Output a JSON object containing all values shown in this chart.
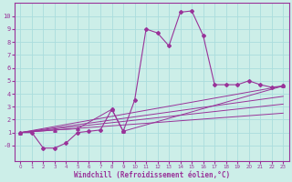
{
  "xlabel": "Windchill (Refroidissement éolien,°C)",
  "xlim": [
    -0.5,
    23.5
  ],
  "ylim": [
    -1.2,
    11.0
  ],
  "xticks": [
    0,
    1,
    2,
    3,
    4,
    5,
    6,
    7,
    8,
    9,
    10,
    11,
    12,
    13,
    14,
    15,
    16,
    17,
    18,
    19,
    20,
    21,
    22,
    23
  ],
  "yticks": [
    0,
    1,
    2,
    3,
    4,
    5,
    6,
    7,
    8,
    9,
    10
  ],
  "ytick_labels": [
    "-0",
    "1",
    "2",
    "3",
    "4",
    "5",
    "6",
    "7",
    "8",
    "9",
    "10"
  ],
  "bg_color": "#cceee8",
  "line_color": "#993399",
  "grid_color": "#aadddd",
  "main_line": {
    "x": [
      0,
      1,
      2,
      3,
      4,
      5,
      6,
      7,
      8,
      9,
      10,
      11,
      12,
      13,
      14,
      15,
      16,
      17,
      18,
      19,
      20,
      21,
      22,
      23
    ],
    "y": [
      1.0,
      1.0,
      -0.2,
      -0.2,
      0.2,
      1.0,
      1.1,
      1.2,
      2.8,
      1.1,
      3.5,
      9.0,
      8.7,
      7.7,
      10.3,
      10.4,
      8.5,
      4.7,
      4.7,
      4.7,
      5.0,
      4.7,
      4.5,
      4.6
    ]
  },
  "trend_lines": [
    {
      "x": [
        0,
        23
      ],
      "y": [
        1.0,
        4.6
      ]
    },
    {
      "x": [
        0,
        23
      ],
      "y": [
        1.0,
        3.8
      ]
    },
    {
      "x": [
        0,
        23
      ],
      "y": [
        1.0,
        3.2
      ]
    },
    {
      "x": [
        0,
        23
      ],
      "y": [
        1.0,
        2.5
      ]
    }
  ],
  "triangle_line": {
    "x": [
      0,
      3,
      5,
      8,
      9,
      23
    ],
    "y": [
      1.0,
      1.2,
      1.3,
      2.8,
      1.1,
      4.6
    ]
  }
}
